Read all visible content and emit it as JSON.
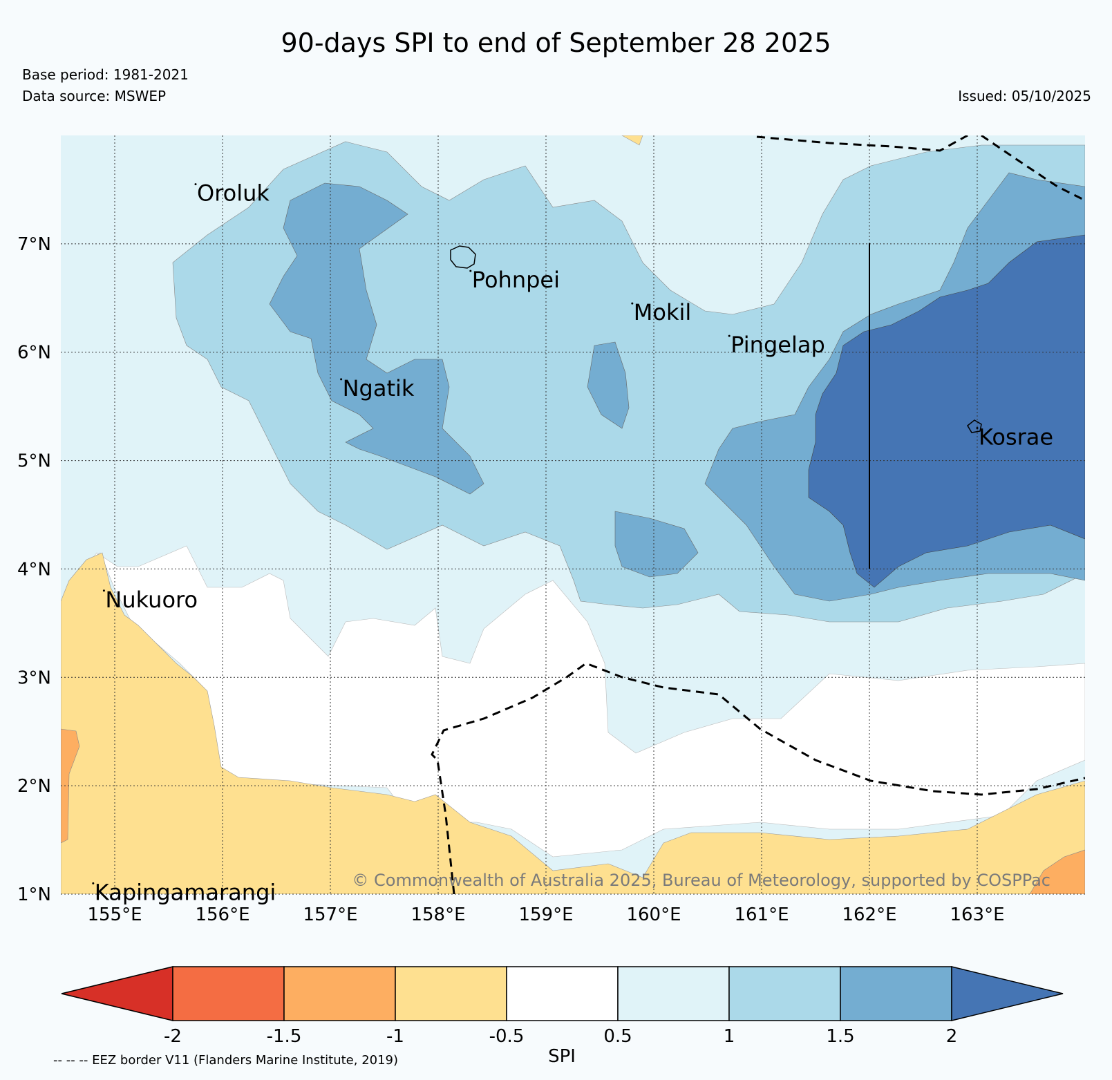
{
  "header": {
    "title": "90-days SPI to end of September 28 2025",
    "base_period": "Base period: 1981-2021",
    "data_source": "Data source: MSWEP",
    "issued": "Issued: 05/10/2025"
  },
  "map": {
    "lon_ticks": [
      "155°E",
      "156°E",
      "157°E",
      "158°E",
      "159°E",
      "160°E",
      "161°E",
      "162°E",
      "163°E"
    ],
    "lat_ticks": [
      "7°N",
      "6°N",
      "5°N",
      "4°N",
      "3°N",
      "2°N",
      "1°N"
    ],
    "lon_range": [
      154.5,
      164.0
    ],
    "lat_range": [
      1.0,
      8.0
    ],
    "places": [
      {
        "name": "Oroluk",
        "lon": 155.75,
        "lat": 7.55
      },
      {
        "name": "Pohnpei",
        "lon": 158.3,
        "lat": 6.75
      },
      {
        "name": "Mokil",
        "lon": 159.8,
        "lat": 6.45
      },
      {
        "name": "Pingelap",
        "lon": 160.7,
        "lat": 6.15
      },
      {
        "name": "Ngatik",
        "lon": 157.1,
        "lat": 5.75
      },
      {
        "name": "Kosrae",
        "lon": 163.0,
        "lat": 5.3
      },
      {
        "name": "Nukuoro",
        "lon": 154.9,
        "lat": 3.8
      },
      {
        "name": "Kapingamarangi",
        "lon": 154.8,
        "lat": 1.1
      }
    ],
    "copyright": "© Commonwealth of Australia 2025, Bureau of Meteorology, supported by COSPPac"
  },
  "legend": {
    "colors": [
      "#d73027",
      "#f46d43",
      "#fdae61",
      "#fee090",
      "#ffffff",
      "#e0f3f8",
      "#abd9e9",
      "#74add1",
      "#4575b4"
    ],
    "tick_labels": [
      "-2",
      "-1.5",
      "-1",
      "-0.5",
      "0.5",
      "1",
      "1.5",
      "2"
    ],
    "label": "SPI",
    "eez_note": "-- -- -- EEZ border V11 (Flanders Marine Institute, 2019)"
  }
}
